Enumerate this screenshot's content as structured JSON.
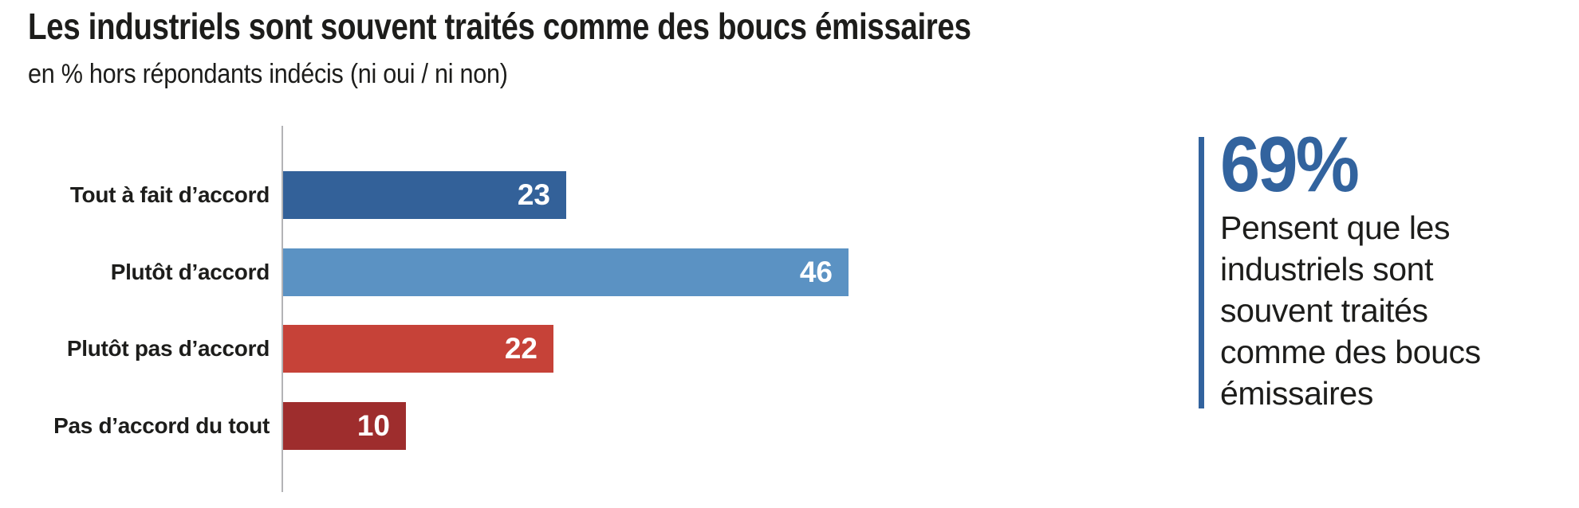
{
  "title": "Les industriels sont souvent traités comme des boucs émissaires",
  "subtitle": "en % hors répondants indécis (ni oui / ni non)",
  "chart_data": {
    "type": "bar",
    "orientation": "horizontal",
    "categories": [
      "Tout à fait d’accord",
      "Plutôt d’accord",
      "Plutôt pas d’accord",
      "Pas d’accord du tout"
    ],
    "values": [
      23,
      46,
      22,
      10
    ],
    "bar_colors": [
      "#336199",
      "#5b92c3",
      "#c64238",
      "#9e2d2d"
    ],
    "value_label_color": "#ffffff",
    "axis_color": "#b3b3b6",
    "xlim": [
      0,
      48
    ],
    "grid": "off",
    "legend": "none",
    "title": "Les industriels sont souvent traités comme des boucs émissaires",
    "xlabel": "",
    "ylabel": ""
  },
  "callout": {
    "percent": "69%",
    "accent_color": "#32639e",
    "lines": {
      "0": "Pensent que les",
      "1": "industriels sont",
      "2": "souvent traités",
      "3": "comme des boucs",
      "4": "émissaires"
    }
  }
}
